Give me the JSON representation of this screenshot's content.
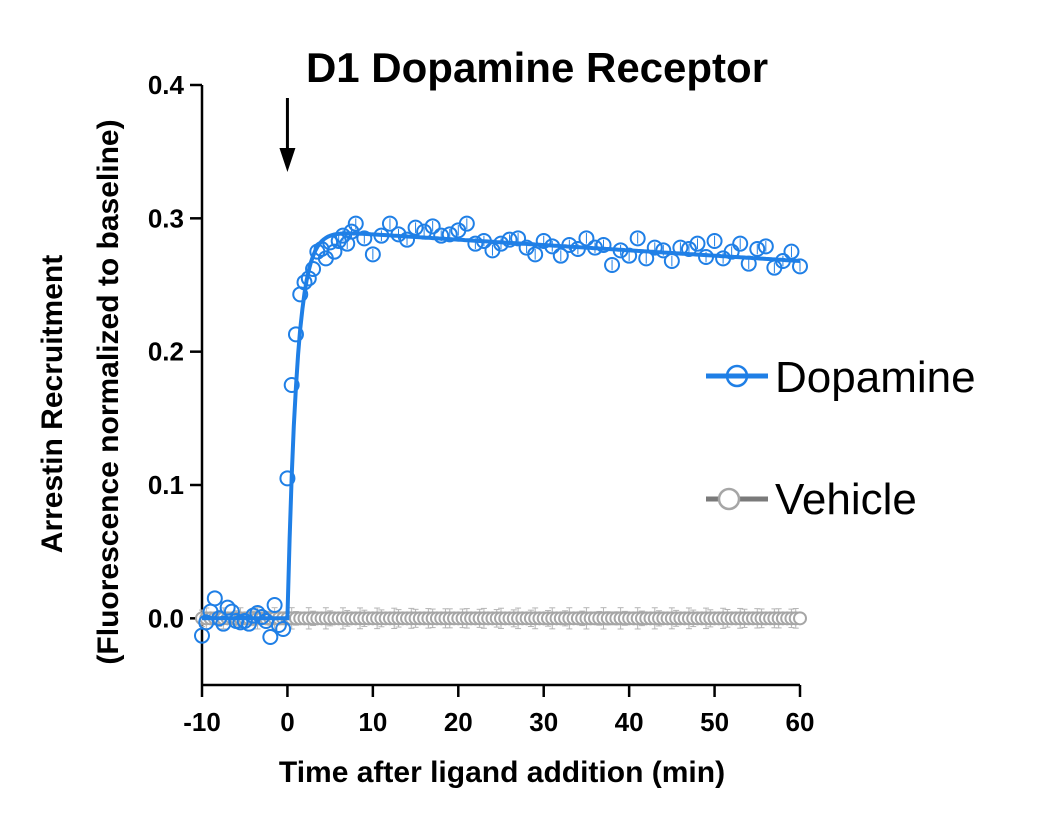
{
  "chart_data": {
    "type": "scatter",
    "title": "D1 Dopamine Receptor",
    "xlabel": "Time after ligand addition (min)",
    "ylabel": "Arrestin Recruitment",
    "ylabel2": "(Fluorescence normalized to baseline)",
    "xlim": [
      -10,
      60
    ],
    "ylim": [
      -0.05,
      0.4
    ],
    "x_ticks": [
      -10,
      0,
      10,
      20,
      30,
      40,
      50,
      60
    ],
    "x_tick_labels": [
      "-10",
      "0",
      "10",
      "20",
      "30",
      "40",
      "50",
      "60"
    ],
    "y_ticks": [
      0.0,
      0.1,
      0.2,
      0.3,
      0.4
    ],
    "y_tick_labels": [
      "0.0",
      "0.1",
      "0.2",
      "0.3",
      "0.4"
    ],
    "annotation": {
      "type": "arrow",
      "x": 0,
      "meaning": "ligand addition"
    },
    "legend_position": "right",
    "series": [
      {
        "name": "Dopamine",
        "color": "#1f7fe6",
        "marker": "open-circle",
        "fit_line": true,
        "x": [
          -10,
          -9.5,
          -9,
          -8.5,
          -8,
          -7.5,
          -7,
          -6.5,
          -6,
          -5.5,
          -5,
          -4.5,
          -4,
          -3.5,
          -3,
          -2.5,
          -2,
          -1.5,
          -1,
          -0.5,
          0,
          0.5,
          1,
          1.5,
          2,
          2.5,
          3,
          3.5,
          4,
          4.5,
          5,
          5.5,
          6,
          6.5,
          7,
          7.5,
          8,
          9,
          10,
          11,
          12,
          13,
          14,
          15,
          16,
          17,
          18,
          19,
          20,
          21,
          22,
          23,
          24,
          25,
          26,
          27,
          28,
          29,
          30,
          31,
          32,
          33,
          34,
          35,
          36,
          37,
          38,
          39,
          40,
          41,
          42,
          43,
          44,
          45,
          46,
          47,
          48,
          49,
          50,
          51,
          52,
          53,
          54,
          55,
          56,
          57,
          58,
          59,
          60
        ],
        "y": [
          -0.013,
          -0.003,
          0.005,
          0.015,
          0.0,
          -0.004,
          0.008,
          0.005,
          -0.002,
          -0.003,
          -0.002,
          -0.004,
          0.002,
          0.004,
          0.001,
          -0.002,
          -0.014,
          0.01,
          -0.005,
          -0.008,
          0.105,
          0.175,
          0.213,
          0.243,
          0.252,
          0.255,
          0.262,
          0.275,
          0.277,
          0.27,
          0.282,
          0.275,
          0.283,
          0.287,
          0.281,
          0.29,
          0.296,
          0.285,
          0.273,
          0.287,
          0.296,
          0.288,
          0.284,
          0.293,
          0.29,
          0.294,
          0.287,
          0.288,
          0.291,
          0.296,
          0.281,
          0.283,
          0.276,
          0.281,
          0.284,
          0.285,
          0.278,
          0.273,
          0.283,
          0.279,
          0.272,
          0.28,
          0.277,
          0.285,
          0.278,
          0.28,
          0.265,
          0.276,
          0.272,
          0.285,
          0.27,
          0.278,
          0.276,
          0.268,
          0.278,
          0.277,
          0.281,
          0.271,
          0.283,
          0.27,
          0.275,
          0.281,
          0.266,
          0.277,
          0.279,
          0.263,
          0.268,
          0.275,
          0.264
        ]
      },
      {
        "name": "Vehicle",
        "color": "#a6a6a6",
        "marker": "open-circle",
        "fit_line": false,
        "x_range": [
          -10,
          60
        ],
        "x_step": 0.5,
        "y_constant": 0.0,
        "error_bar": 0.008
      }
    ]
  }
}
